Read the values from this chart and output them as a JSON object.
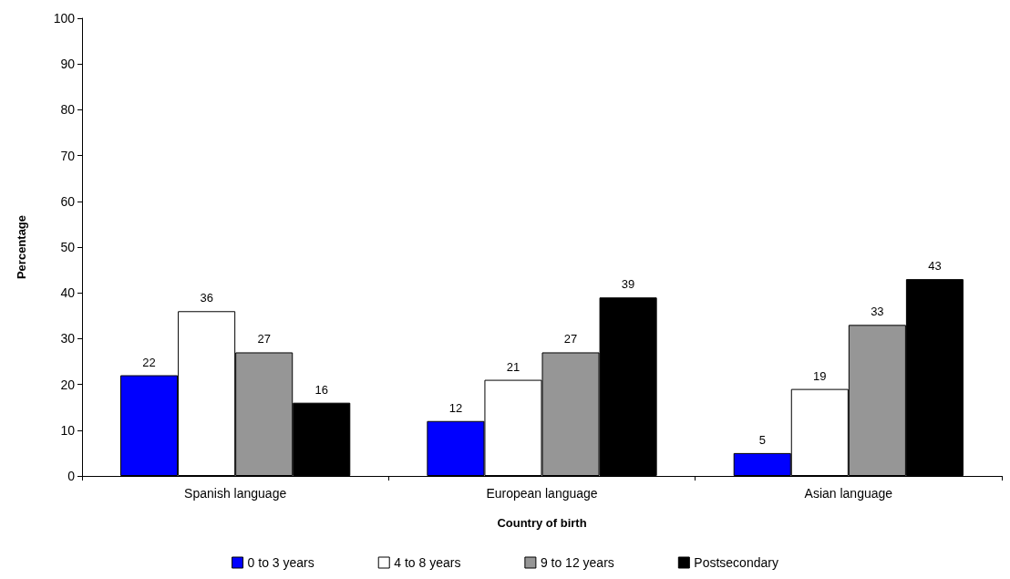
{
  "chart_data": {
    "type": "bar",
    "xlabel": "Country of birth",
    "ylabel": "Percentage",
    "categories": [
      "Spanish language",
      "European language",
      "Asian language"
    ],
    "series": [
      {
        "name": "0 to 3 years",
        "color": "#0000ff",
        "values": [
          22,
          12,
          5
        ]
      },
      {
        "name": "4 to 8 years",
        "color": "#ffffff",
        "values": [
          36,
          21,
          19
        ]
      },
      {
        "name": "9 to 12 years",
        "color": "#969696",
        "values": [
          27,
          27,
          33
        ]
      },
      {
        "name": "Postsecondary",
        "color": "#000000",
        "values": [
          16,
          39,
          43
        ]
      }
    ],
    "ylim": [
      0,
      100
    ],
    "yticks": [
      0,
      10,
      20,
      30,
      40,
      50,
      60,
      70,
      80,
      90,
      100
    ],
    "grid": false,
    "legend": "bottom",
    "data_labels": true
  }
}
